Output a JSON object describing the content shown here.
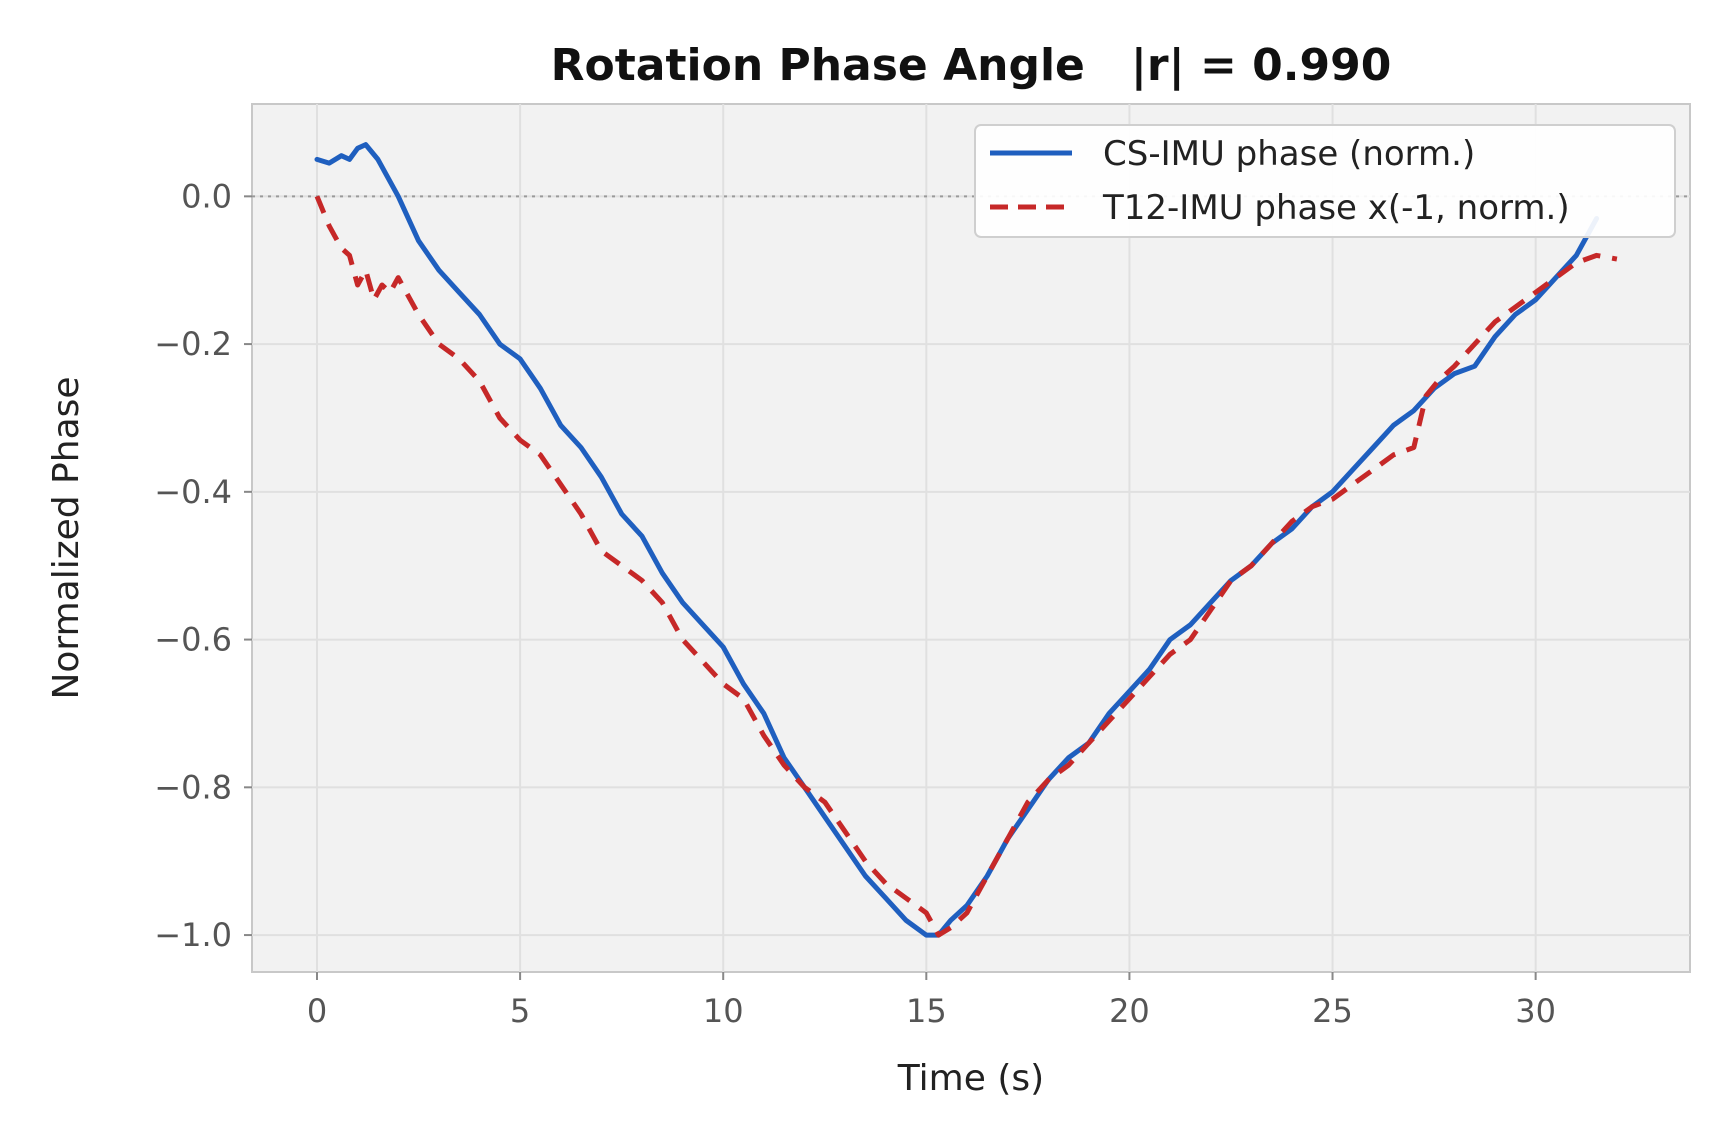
{
  "chart_data": {
    "type": "line",
    "title": "Rotation Phase Angle   |r| = 0.990",
    "xlabel": "Time (s)",
    "ylabel": "Normalized Phase",
    "xlim": [
      -1.6,
      33.8
    ],
    "ylim": [
      -1.05,
      0.125
    ],
    "xticks": [
      0,
      5,
      10,
      15,
      20,
      25,
      30
    ],
    "yticks": [
      0.0,
      -0.2,
      -0.4,
      -0.6,
      -0.8,
      -1.0
    ],
    "xtick_labels": [
      "0",
      "5",
      "10",
      "15",
      "20",
      "25",
      "30"
    ],
    "ytick_labels": [
      "0.0",
      "−0.2",
      "−0.4",
      "−0.6",
      "−0.8",
      "−1.0"
    ],
    "grid": true,
    "reference_line": {
      "y": 0.0,
      "style": "dotted"
    },
    "legend_position": "top-right",
    "series": [
      {
        "name": "CS-IMU phase (norm.)",
        "color": "#1f5fbf",
        "style": "solid",
        "x": [
          0,
          0.3,
          0.6,
          0.8,
          1.0,
          1.2,
          1.5,
          2.0,
          2.5,
          3.0,
          3.5,
          4.0,
          4.5,
          5.0,
          5.5,
          6.0,
          6.5,
          7.0,
          7.5,
          8.0,
          8.5,
          9.0,
          9.5,
          10.0,
          10.5,
          11.0,
          11.5,
          12.0,
          12.5,
          13.0,
          13.5,
          14.0,
          14.5,
          15.0,
          15.3,
          15.6,
          16.0,
          16.5,
          17.0,
          17.5,
          18.0,
          18.5,
          19.0,
          19.5,
          20.0,
          20.5,
          21.0,
          21.5,
          22.0,
          22.5,
          23.0,
          23.5,
          24.0,
          24.5,
          25.0,
          25.5,
          26.0,
          26.5,
          27.0,
          27.5,
          28.0,
          28.5,
          29.0,
          29.5,
          30.0,
          30.5,
          31.0,
          31.5
        ],
        "y": [
          0.05,
          0.045,
          0.055,
          0.05,
          0.065,
          0.07,
          0.05,
          0.0,
          -0.06,
          -0.1,
          -0.13,
          -0.16,
          -0.2,
          -0.22,
          -0.26,
          -0.31,
          -0.34,
          -0.38,
          -0.43,
          -0.46,
          -0.51,
          -0.55,
          -0.58,
          -0.61,
          -0.66,
          -0.7,
          -0.76,
          -0.8,
          -0.84,
          -0.88,
          -0.92,
          -0.95,
          -0.98,
          -1.0,
          -1.0,
          -0.98,
          -0.96,
          -0.92,
          -0.87,
          -0.83,
          -0.79,
          -0.76,
          -0.74,
          -0.7,
          -0.67,
          -0.64,
          -0.6,
          -0.58,
          -0.55,
          -0.52,
          -0.5,
          -0.47,
          -0.45,
          -0.42,
          -0.4,
          -0.37,
          -0.34,
          -0.31,
          -0.29,
          -0.26,
          -0.24,
          -0.23,
          -0.19,
          -0.16,
          -0.14,
          -0.11,
          -0.08,
          -0.03
        ]
      },
      {
        "name": "T12-IMU phase x(-1, norm.)",
        "color": "#c62828",
        "style": "dashed",
        "x": [
          0,
          0.3,
          0.6,
          0.8,
          1.0,
          1.2,
          1.4,
          1.6,
          1.8,
          2.0,
          2.5,
          3.0,
          3.5,
          4.0,
          4.5,
          5.0,
          5.5,
          6.0,
          6.5,
          7.0,
          7.5,
          8.0,
          8.5,
          9.0,
          9.5,
          10.0,
          10.5,
          11.0,
          11.5,
          12.0,
          12.5,
          13.0,
          13.5,
          14.0,
          14.5,
          15.0,
          15.3,
          15.6,
          16.0,
          16.5,
          17.0,
          17.5,
          18.0,
          18.5,
          19.0,
          19.5,
          20.0,
          20.5,
          21.0,
          21.5,
          22.0,
          22.5,
          23.0,
          23.5,
          24.0,
          24.5,
          25.0,
          25.5,
          26.0,
          26.5,
          27.0,
          27.3,
          27.6,
          28.0,
          28.5,
          29.0,
          29.5,
          30.0,
          30.5,
          31.0,
          31.5,
          32.0
        ],
        "y": [
          0.0,
          -0.04,
          -0.07,
          -0.08,
          -0.12,
          -0.1,
          -0.14,
          -0.12,
          -0.13,
          -0.11,
          -0.16,
          -0.2,
          -0.22,
          -0.25,
          -0.3,
          -0.33,
          -0.35,
          -0.39,
          -0.43,
          -0.48,
          -0.5,
          -0.52,
          -0.55,
          -0.6,
          -0.63,
          -0.66,
          -0.68,
          -0.73,
          -0.77,
          -0.8,
          -0.82,
          -0.86,
          -0.9,
          -0.93,
          -0.95,
          -0.97,
          -1.0,
          -0.99,
          -0.97,
          -0.92,
          -0.87,
          -0.82,
          -0.79,
          -0.77,
          -0.74,
          -0.71,
          -0.68,
          -0.65,
          -0.62,
          -0.6,
          -0.56,
          -0.52,
          -0.5,
          -0.47,
          -0.44,
          -0.42,
          -0.41,
          -0.39,
          -0.37,
          -0.35,
          -0.34,
          -0.27,
          -0.25,
          -0.23,
          -0.2,
          -0.17,
          -0.15,
          -0.13,
          -0.11,
          -0.09,
          -0.08,
          -0.085
        ]
      }
    ]
  }
}
